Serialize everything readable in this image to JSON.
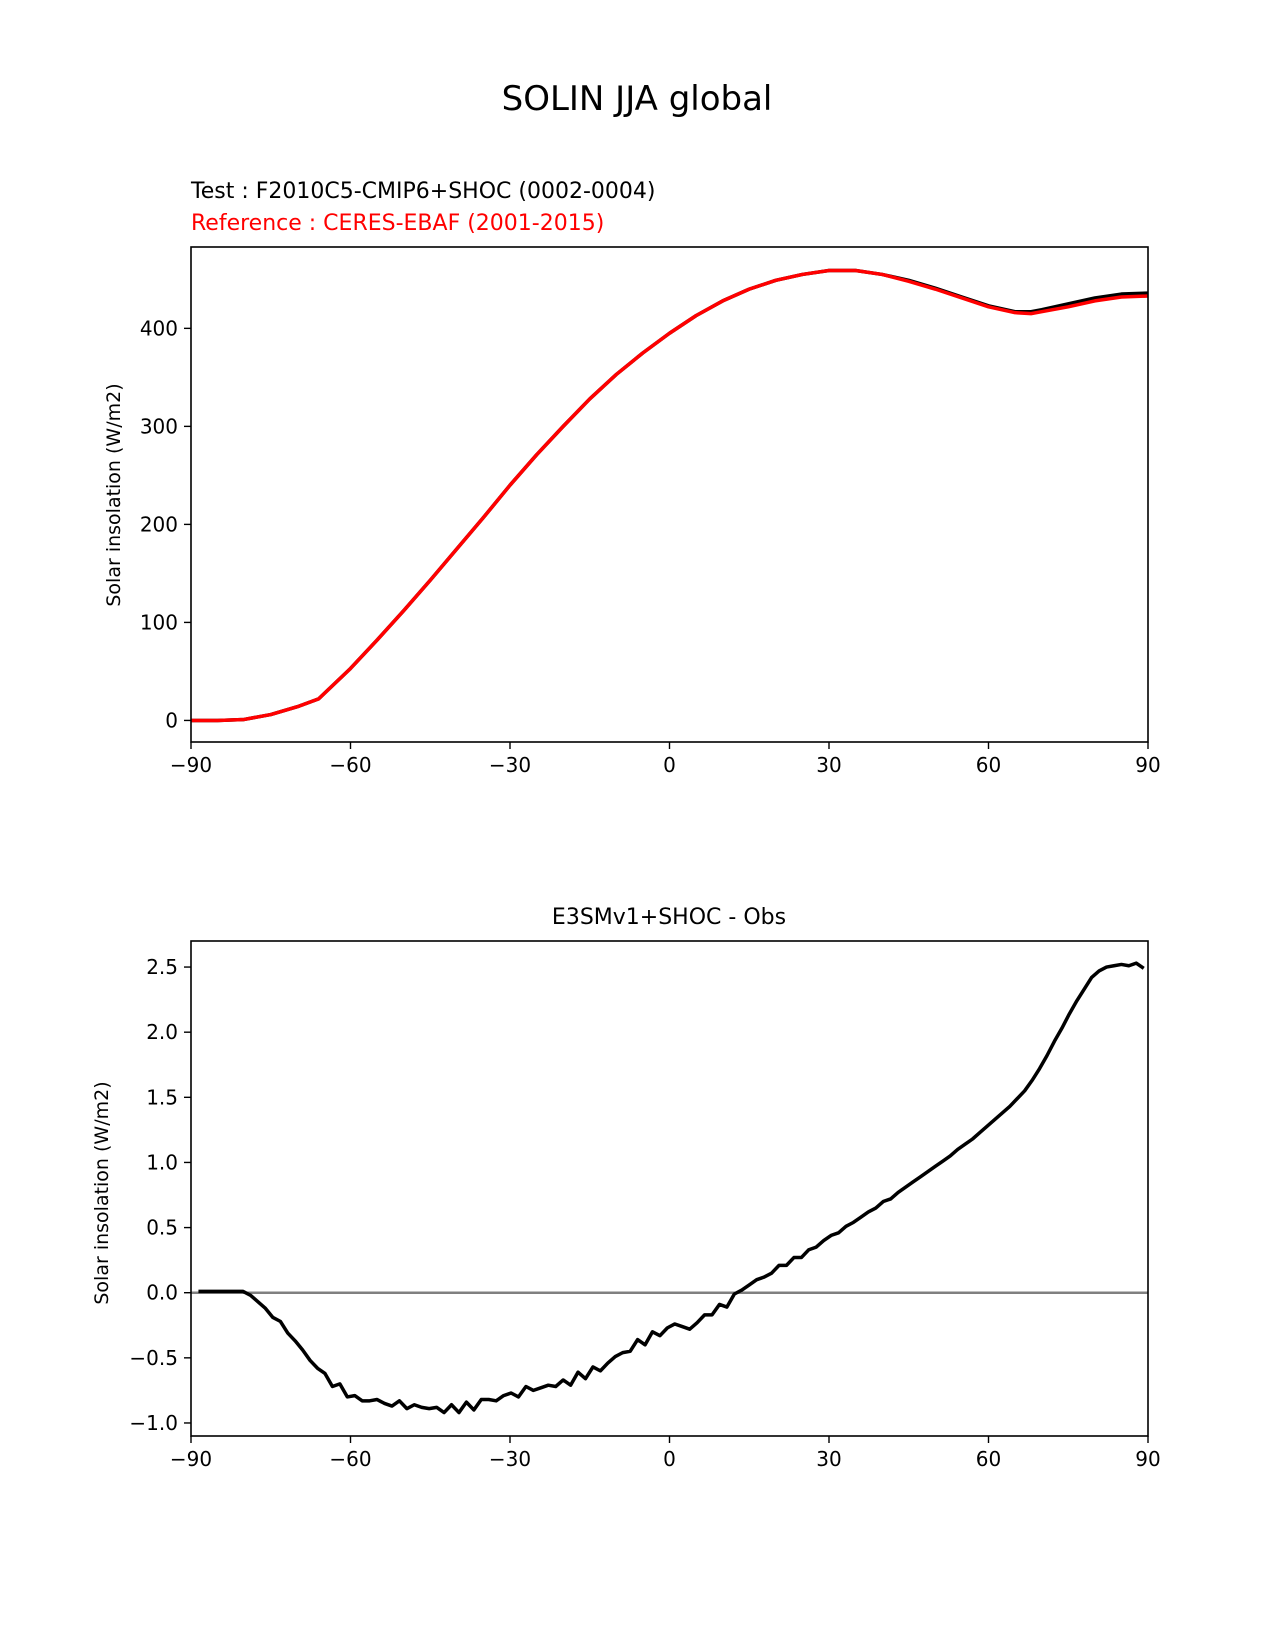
{
  "figure": {
    "suptitle": "SOLIN JJA global"
  },
  "chart_data": [
    {
      "type": "line",
      "test_label": "Test : F2010C5-CMIP6+SHOC (0002-0004)",
      "reference_label": "Reference : CERES-EBAF (2001-2015)",
      "ylabel": "Solar insolation (W/m2)",
      "xlim": [
        -90,
        90
      ],
      "ylim": [
        -22,
        483
      ],
      "xticks": [
        -90,
        -60,
        -30,
        0,
        30,
        60,
        90
      ],
      "xtick_labels": [
        "−90",
        "−60",
        "−30",
        "0",
        "30",
        "60",
        "90"
      ],
      "yticks": [
        0,
        100,
        200,
        300,
        400
      ],
      "ytick_labels": [
        "0",
        "100",
        "200",
        "300",
        "400"
      ],
      "colors": {
        "test": "#000000",
        "reference": "#ff0000"
      },
      "series": [
        {
          "name": "Test",
          "x": [
            -90,
            -85,
            -80,
            -75,
            -70,
            -66,
            -60,
            -55,
            -50,
            -45,
            -40,
            -35,
            -30,
            -25,
            -20,
            -15,
            -10,
            -5,
            0,
            5,
            10,
            15,
            20,
            25,
            30,
            35,
            40,
            45,
            50,
            55,
            60,
            65,
            68,
            70,
            75,
            80,
            85,
            90
          ],
          "values": [
            0,
            0,
            1,
            6,
            14,
            22,
            53,
            82,
            112,
            143,
            175,
            207,
            240,
            271,
            300,
            328,
            353,
            375,
            395,
            413,
            428,
            440,
            449,
            455,
            459,
            459,
            455,
            449,
            441,
            432,
            423,
            417,
            417,
            419,
            425,
            431,
            435,
            436
          ]
        },
        {
          "name": "Reference",
          "x": [
            -90,
            -85,
            -80,
            -75,
            -70,
            -66,
            -60,
            -55,
            -50,
            -45,
            -40,
            -35,
            -30,
            -25,
            -20,
            -15,
            -10,
            -5,
            0,
            5,
            10,
            15,
            20,
            25,
            30,
            35,
            40,
            45,
            50,
            55,
            60,
            65,
            68,
            70,
            75,
            80,
            85,
            90
          ],
          "values": [
            0,
            0,
            1,
            6,
            14,
            22,
            53,
            82,
            112,
            143,
            175,
            207,
            240,
            271,
            300,
            328,
            353,
            375,
            395,
            413,
            428,
            440,
            449,
            455,
            459,
            459,
            455,
            448,
            440,
            431,
            422,
            416,
            415,
            417,
            422,
            428,
            432,
            433
          ]
        }
      ]
    },
    {
      "type": "line",
      "title": "E3SMv1+SHOC - Obs",
      "ylabel": "Solar insolation (W/m2)",
      "xlim": [
        -90,
        90
      ],
      "ylim": [
        -1.1,
        2.7
      ],
      "xticks": [
        -90,
        -60,
        -30,
        0,
        30,
        60,
        90
      ],
      "xtick_labels": [
        "−90",
        "−60",
        "−30",
        "0",
        "30",
        "60",
        "90"
      ],
      "yticks": [
        -1.0,
        -0.5,
        0.0,
        0.5,
        1.0,
        1.5,
        2.0,
        2.5
      ],
      "ytick_labels": [
        "−1.0",
        "−0.5",
        "0.0",
        "0.5",
        "1.0",
        "1.5",
        "2.0",
        "2.5"
      ],
      "zero_line": 0,
      "colors": {
        "diff": "#000000",
        "zero": "#808080"
      },
      "series": [
        {
          "name": "E3SMv1+SHOC - Obs",
          "x": [
            -88.6,
            -87.2,
            -85.8,
            -84.4,
            -83.0,
            -81.6,
            -80.2,
            -78.8,
            -77.4,
            -76.0,
            -74.6,
            -73.2,
            -71.8,
            -70.4,
            -69.0,
            -67.6,
            -66.2,
            -64.8,
            -63.4,
            -62.0,
            -60.6,
            -59.2,
            -57.8,
            -56.4,
            -55.0,
            -53.6,
            -52.2,
            -50.8,
            -49.4,
            -48.0,
            -46.6,
            -45.2,
            -43.8,
            -42.4,
            -41.0,
            -39.6,
            -38.2,
            -36.8,
            -35.4,
            -34.0,
            -32.6,
            -31.2,
            -29.8,
            -28.4,
            -27.0,
            -25.6,
            -24.2,
            -22.8,
            -21.4,
            -20.0,
            -18.6,
            -17.2,
            -15.8,
            -14.4,
            -13.0,
            -11.6,
            -10.2,
            -8.8,
            -7.4,
            -6.0,
            -4.6,
            -3.2,
            -1.8,
            -0.4,
            1.0,
            2.4,
            3.8,
            5.2,
            6.6,
            8.0,
            9.4,
            10.8,
            12.2,
            13.6,
            15.0,
            16.4,
            17.8,
            19.2,
            20.6,
            22.0,
            23.4,
            24.8,
            26.2,
            27.6,
            29.0,
            30.4,
            31.8,
            33.2,
            34.6,
            36.0,
            37.4,
            38.8,
            40.2,
            41.6,
            43.0,
            44.4,
            45.8,
            47.2,
            48.6,
            50.0,
            51.4,
            52.8,
            54.2,
            55.6,
            57.0,
            58.4,
            59.8,
            61.2,
            62.6,
            64.0,
            65.4,
            66.8,
            68.2,
            69.6,
            71.0,
            72.4,
            73.8,
            75.2,
            76.6,
            78.0,
            79.4,
            80.8,
            82.2,
            83.6,
            85.0,
            86.4,
            87.8,
            89.2
          ],
          "values": [
            0.01,
            0.01,
            0.01,
            0.01,
            0.01,
            0.01,
            0.01,
            -0.02,
            -0.07,
            -0.12,
            -0.19,
            -0.22,
            -0.31,
            -0.37,
            -0.44,
            -0.52,
            -0.58,
            -0.62,
            -0.72,
            -0.7,
            -0.8,
            -0.79,
            -0.83,
            -0.83,
            -0.82,
            -0.85,
            -0.87,
            -0.83,
            -0.89,
            -0.86,
            -0.88,
            -0.89,
            -0.88,
            -0.92,
            -0.86,
            -0.92,
            -0.84,
            -0.9,
            -0.82,
            -0.82,
            -0.83,
            -0.79,
            -0.77,
            -0.8,
            -0.72,
            -0.75,
            -0.73,
            -0.71,
            -0.72,
            -0.67,
            -0.71,
            -0.61,
            -0.66,
            -0.57,
            -0.6,
            -0.54,
            -0.49,
            -0.46,
            -0.45,
            -0.36,
            -0.4,
            -0.3,
            -0.33,
            -0.27,
            -0.24,
            -0.26,
            -0.28,
            -0.23,
            -0.17,
            -0.17,
            -0.09,
            -0.11,
            -0.01,
            0.02,
            0.06,
            0.1,
            0.12,
            0.15,
            0.21,
            0.21,
            0.27,
            0.27,
            0.33,
            0.35,
            0.4,
            0.44,
            0.46,
            0.51,
            0.54,
            0.58,
            0.62,
            0.65,
            0.7,
            0.72,
            0.77,
            0.81,
            0.85,
            0.89,
            0.93,
            0.97,
            1.01,
            1.05,
            1.1,
            1.14,
            1.18,
            1.23,
            1.28,
            1.33,
            1.38,
            1.43,
            1.49,
            1.55,
            1.63,
            1.72,
            1.82,
            1.93,
            2.03,
            2.14,
            2.24,
            2.33,
            2.42,
            2.47,
            2.5,
            2.51,
            2.52,
            2.51,
            2.53,
            2.49
          ]
        }
      ]
    }
  ]
}
